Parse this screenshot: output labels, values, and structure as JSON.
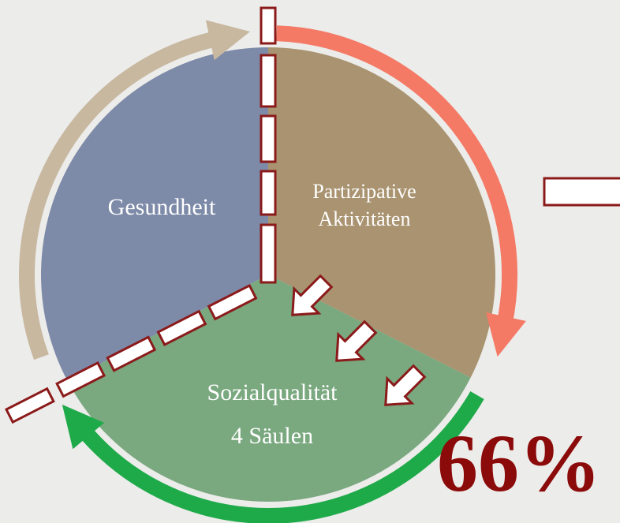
{
  "segments": [
    {
      "label": "Gesundheit"
    },
    {
      "label_lines": [
        "Partizipative",
        "Aktivitäten"
      ]
    },
    {
      "label_lines": [
        "Sozialqualität",
        "4 Säulen"
      ]
    }
  ],
  "highlight": "66%"
}
